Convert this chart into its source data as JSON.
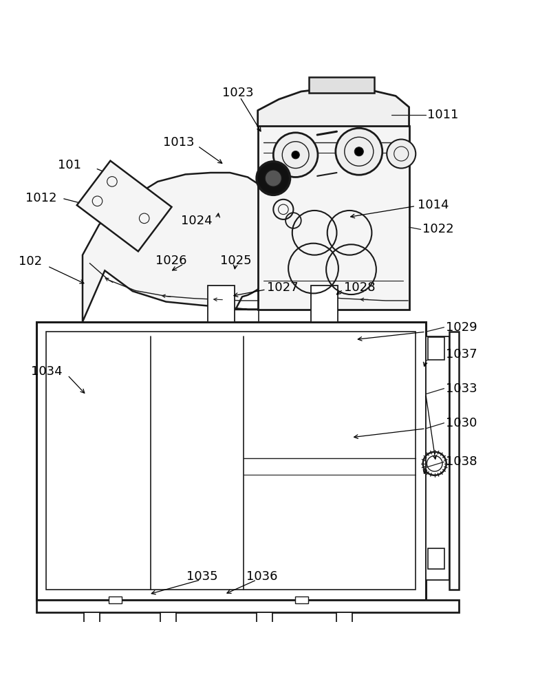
{
  "bg_color": "#ffffff",
  "line_color": "#1a1a1a",
  "label_color": "#000000",
  "label_fontsize": 13
}
